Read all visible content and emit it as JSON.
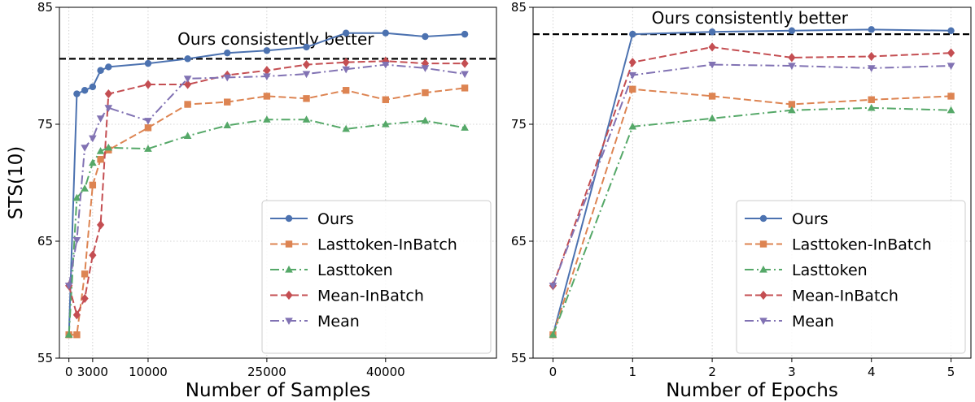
{
  "chart_data": [
    {
      "type": "line",
      "title": "",
      "xlabel": "Number of Samples",
      "ylabel": "STS(10)",
      "xlim": [
        -1200,
        54000
      ],
      "ylim": [
        55,
        85
      ],
      "xticks": [
        0,
        3000,
        10000,
        25000,
        40000
      ],
      "xtick_labels": [
        "0",
        "3000",
        "10000",
        "25000",
        "40000"
      ],
      "yticks": [
        55,
        65,
        75,
        85
      ],
      "grid": true,
      "legend_position": "lower-right",
      "hline": {
        "y": 80.6,
        "label": "Ours consistently better"
      },
      "series": [
        {
          "name": "Ours",
          "color": "#4c72b0",
          "dash": "solid",
          "marker": "circle",
          "x": [
            0,
            1000,
            2000,
            3000,
            4000,
            5000,
            10000,
            15000,
            20000,
            25000,
            30000,
            35000,
            40000,
            45000,
            50000
          ],
          "y": [
            57,
            77.6,
            77.9,
            78.2,
            79.6,
            79.9,
            80.2,
            80.6,
            81.1,
            81.3,
            81.6,
            82.8,
            82.8,
            82.5,
            82.7
          ]
        },
        {
          "name": "Lasttoken-InBatch",
          "color": "#dd8452",
          "dash": "dashed",
          "marker": "square",
          "x": [
            0,
            1000,
            2000,
            3000,
            4000,
            5000,
            10000,
            15000,
            20000,
            25000,
            30000,
            35000,
            40000,
            45000,
            50000
          ],
          "y": [
            57,
            57,
            62.2,
            69.8,
            72,
            72.8,
            74.7,
            76.7,
            76.9,
            77.4,
            77.2,
            77.9,
            77.1,
            77.7,
            78.1
          ]
        },
        {
          "name": "Lasttoken",
          "color": "#55a868",
          "dash": "dashdot",
          "marker": "triangle-up",
          "x": [
            0,
            1000,
            2000,
            3000,
            4000,
            5000,
            10000,
            15000,
            20000,
            25000,
            30000,
            35000,
            40000,
            45000,
            50000
          ],
          "y": [
            57,
            68.7,
            69.5,
            71.7,
            72.7,
            73,
            72.9,
            74,
            74.9,
            75.4,
            75.4,
            74.6,
            75,
            75.3,
            74.7
          ]
        },
        {
          "name": "Mean-InBatch",
          "color": "#c44e52",
          "dash": "dashed",
          "marker": "diamond",
          "x": [
            0,
            1000,
            2000,
            3000,
            4000,
            5000,
            10000,
            15000,
            20000,
            25000,
            30000,
            35000,
            40000,
            45000,
            50000
          ],
          "y": [
            61.2,
            58.7,
            60.1,
            63.8,
            66.4,
            77.6,
            78.4,
            78.4,
            79.2,
            79.6,
            80.1,
            80.3,
            80.4,
            80.2,
            80.2
          ]
        },
        {
          "name": "Mean",
          "color": "#8172b3",
          "dash": "dashdot",
          "marker": "triangle-down",
          "x": [
            0,
            1000,
            2000,
            3000,
            4000,
            5000,
            10000,
            15000,
            20000,
            25000,
            30000,
            35000,
            40000,
            45000,
            50000
          ],
          "y": [
            61.2,
            65.1,
            73,
            73.8,
            75.5,
            76.4,
            75.3,
            78.9,
            79,
            79.1,
            79.3,
            79.7,
            80.1,
            79.8,
            79.3
          ]
        }
      ]
    },
    {
      "type": "line",
      "title": "",
      "xlabel": "Number of Epochs",
      "ylabel": "",
      "xlim": [
        -0.25,
        5.25
      ],
      "ylim": [
        55,
        85
      ],
      "xticks": [
        0,
        1,
        2,
        3,
        4,
        5
      ],
      "xtick_labels": [
        "0",
        "1",
        "2",
        "3",
        "4",
        "5"
      ],
      "yticks": [
        55,
        65,
        75,
        85
      ],
      "grid": true,
      "legend_position": "lower-right",
      "hline": {
        "y": 82.7,
        "label": "Ours consistently better"
      },
      "series": [
        {
          "name": "Ours",
          "color": "#4c72b0",
          "dash": "solid",
          "marker": "circle",
          "x": [
            0,
            1,
            2,
            3,
            4,
            5
          ],
          "y": [
            57,
            82.7,
            82.9,
            83,
            83.1,
            83
          ]
        },
        {
          "name": "Lasttoken-InBatch",
          "color": "#dd8452",
          "dash": "dashed",
          "marker": "square",
          "x": [
            0,
            1,
            2,
            3,
            4,
            5
          ],
          "y": [
            57,
            78,
            77.4,
            76.7,
            77.1,
            77.4
          ]
        },
        {
          "name": "Lasttoken",
          "color": "#55a868",
          "dash": "dashdot",
          "marker": "triangle-up",
          "x": [
            0,
            1,
            2,
            3,
            4,
            5
          ],
          "y": [
            57,
            74.8,
            75.5,
            76.2,
            76.4,
            76.2
          ]
        },
        {
          "name": "Mean-InBatch",
          "color": "#c44e52",
          "dash": "dashed",
          "marker": "diamond",
          "x": [
            0,
            1,
            2,
            3,
            4,
            5
          ],
          "y": [
            61.2,
            80.3,
            81.6,
            80.7,
            80.8,
            81.1
          ]
        },
        {
          "name": "Mean",
          "color": "#8172b3",
          "dash": "dashdot",
          "marker": "triangle-down",
          "x": [
            0,
            1,
            2,
            3,
            4,
            5
          ],
          "y": [
            61.2,
            79.2,
            80.1,
            80,
            79.8,
            80
          ]
        }
      ]
    }
  ]
}
